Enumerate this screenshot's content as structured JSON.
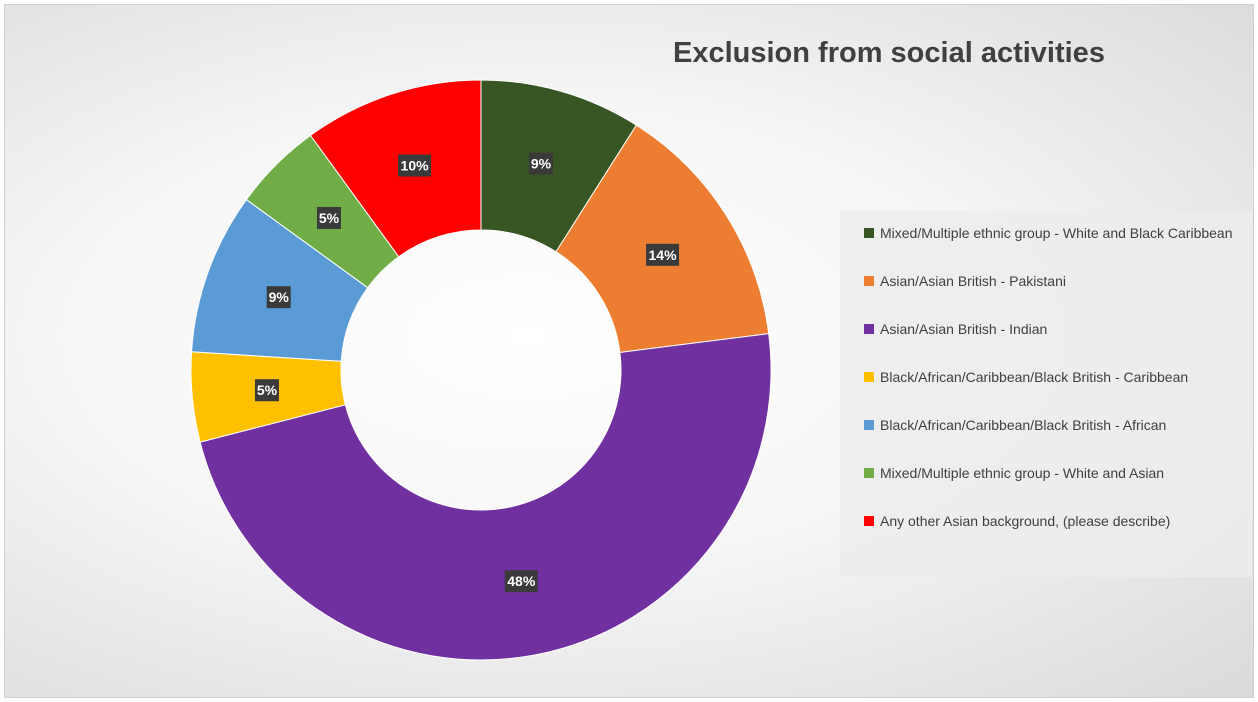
{
  "chart_data": {
    "type": "pie",
    "donut": true,
    "title": "Exclusion from social activities",
    "legend_position": "right",
    "slices": [
      {
        "label": "Mixed/Multiple ethnic group - White and Black Caribbean",
        "value": 9,
        "display": "9%",
        "color": "#375623"
      },
      {
        "label": "Asian/Asian British - Pakistani",
        "value": 14,
        "display": "14%",
        "color": "#ed7d31"
      },
      {
        "label": "Asian/Asian British - Indian",
        "value": 48,
        "display": "48%",
        "color": "#7030a0"
      },
      {
        "label": "Black/African/Caribbean/Black British - Caribbean",
        "value": 5,
        "display": "5%",
        "color": "#ffc000"
      },
      {
        "label": "Black/African/Caribbean/Black British - African",
        "value": 9,
        "display": "9%",
        "color": "#5b9bd5"
      },
      {
        "label": "Mixed/Multiple ethnic group - White and Asian",
        "value": 5,
        "display": "5%",
        "color": "#70ad47"
      },
      {
        "label": "Any other Asian background, (please describe)",
        "value": 10,
        "display": "10%",
        "color": "#ff0000"
      }
    ]
  }
}
